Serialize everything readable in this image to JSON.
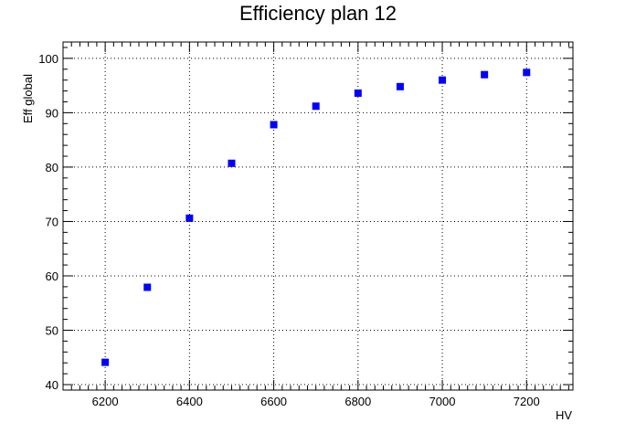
{
  "chart_data": {
    "type": "scatter",
    "title": "Efficiency plan 12",
    "xlabel": "HV",
    "ylabel": "Eff global",
    "xlim": [
      6100,
      7310
    ],
    "ylim": [
      39,
      103
    ],
    "grid": true,
    "x_ticks": [
      6200,
      6400,
      6600,
      6800,
      7000,
      7200
    ],
    "y_ticks": [
      40,
      50,
      60,
      70,
      80,
      90,
      100
    ],
    "marker_color": "#0000ff",
    "series": [
      {
        "x": [
          6200,
          6300,
          6400,
          6500,
          6600,
          6700,
          6800,
          6900,
          7000,
          7100,
          7200
        ],
        "y": [
          44.1,
          57.9,
          70.6,
          80.7,
          87.8,
          91.2,
          93.6,
          94.8,
          96.0,
          97.0,
          97.4
        ]
      }
    ]
  }
}
